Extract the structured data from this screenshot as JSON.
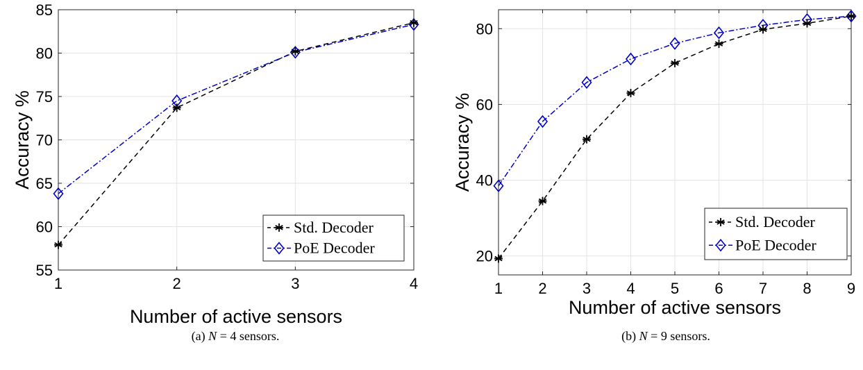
{
  "colors": {
    "std": "#000000",
    "poe": "#0000cc",
    "grid": "#e3e3e3"
  },
  "chart_data": [
    {
      "type": "line",
      "xlabel": "Number of active sensors",
      "ylabel": "Accuracy %",
      "x": [
        1,
        2,
        3,
        4
      ],
      "xticks": [
        1,
        2,
        3,
        4
      ],
      "yticks": [
        55,
        60,
        65,
        70,
        75,
        80,
        85
      ],
      "xlim": [
        1,
        4
      ],
      "ylim": [
        55,
        85
      ],
      "grid": true,
      "legend_position": "bottom-right",
      "series": [
        {
          "name": "Std. Decoder",
          "marker": "asterisk",
          "line": "dashed",
          "values": [
            57.9,
            73.7,
            80.2,
            83.5
          ]
        },
        {
          "name": "PoE Decoder",
          "marker": "diamond",
          "line": "dash-dot",
          "values": [
            63.8,
            74.5,
            80.1,
            83.3
          ]
        }
      ],
      "caption": {
        "prefix": "(a) ",
        "var": "N",
        "rest": " = 4 sensors."
      }
    },
    {
      "type": "line",
      "xlabel": "Number of active sensors",
      "ylabel": "Accuracy %",
      "x": [
        1,
        2,
        3,
        4,
        5,
        6,
        7,
        8,
        9
      ],
      "xticks": [
        1,
        2,
        3,
        4,
        5,
        6,
        7,
        8,
        9
      ],
      "yticks": [
        20,
        40,
        60,
        80
      ],
      "xlim": [
        1,
        9
      ],
      "ylim": [
        15,
        85
      ],
      "grid": true,
      "legend_position": "bottom-right",
      "series": [
        {
          "name": "Std. Decoder",
          "marker": "asterisk",
          "line": "dashed",
          "values": [
            19.3,
            34.5,
            50.8,
            63.0,
            70.9,
            76.0,
            79.8,
            81.4,
            83.3
          ]
        },
        {
          "name": "PoE Decoder",
          "marker": "diamond",
          "line": "dash-dot",
          "values": [
            38.5,
            55.5,
            65.8,
            72.0,
            76.1,
            78.9,
            80.9,
            82.4,
            83.3
          ]
        }
      ],
      "caption": {
        "prefix": "(b) ",
        "var": "N",
        "rest": " = 9 sensors."
      }
    }
  ]
}
